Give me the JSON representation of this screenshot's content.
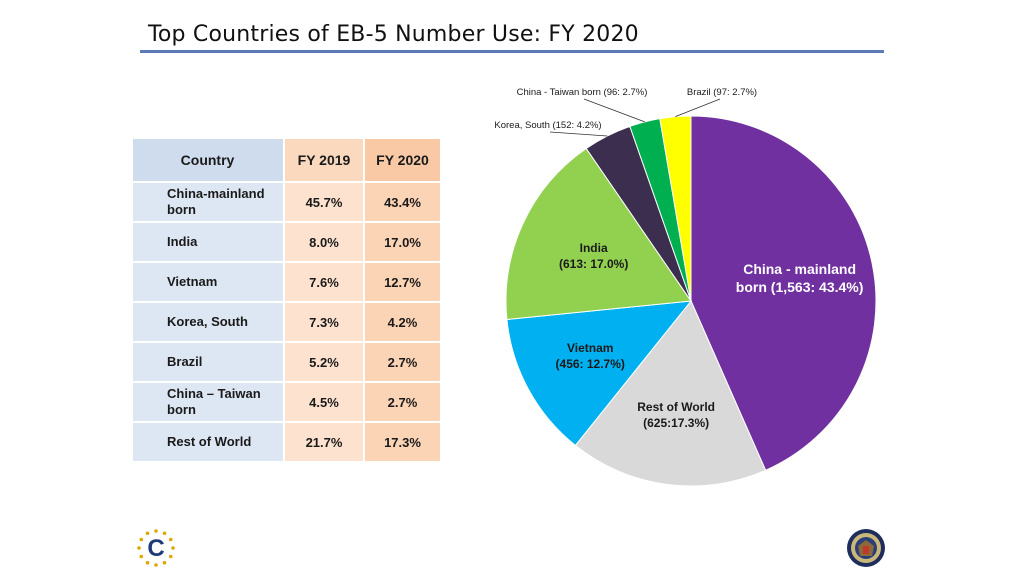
{
  "title": "Top Countries of EB-5 Number Use: FY 2020",
  "table": {
    "headers": [
      "Country",
      "FY 2019",
      "FY 2020"
    ],
    "rows": [
      [
        "China-mainland born",
        "45.7%",
        "43.4%"
      ],
      [
        "India",
        "8.0%",
        "17.0%"
      ],
      [
        "Vietnam",
        "7.6%",
        "12.7%"
      ],
      [
        "Korea, South",
        "7.3%",
        "4.2%"
      ],
      [
        "Brazil",
        "5.2%",
        "2.7%"
      ],
      [
        "China – Taiwan born",
        "4.5%",
        "2.7%"
      ],
      [
        "Rest of World",
        "21.7%",
        "17.3%"
      ]
    ]
  },
  "chart_data": [
    {
      "type": "table",
      "columns": [
        "Country",
        "FY 2019",
        "FY 2020"
      ],
      "rows": [
        [
          "China-mainland born",
          45.7,
          43.4
        ],
        [
          "India",
          8.0,
          17.0
        ],
        [
          "Vietnam",
          7.6,
          12.7
        ],
        [
          "Korea, South",
          7.3,
          4.2
        ],
        [
          "Brazil",
          5.2,
          2.7
        ],
        [
          "China – Taiwan born",
          4.5,
          2.7
        ],
        [
          "Rest of World",
          21.7,
          17.3
        ]
      ]
    },
    {
      "type": "pie",
      "slices": [
        {
          "label": "China - mainland born",
          "value": 1563,
          "percent": 43.4,
          "display": [
            "China - mainland",
            "born (1,563: 43.4%)"
          ],
          "color": "#7030a0",
          "label_inside": true
        },
        {
          "label": "Rest of World",
          "value": 625,
          "percent": 17.3,
          "display": [
            "Rest of World",
            "(625:17.3%)"
          ],
          "color": "#d9d9d9",
          "label_inside": true
        },
        {
          "label": "Vietnam",
          "value": 456,
          "percent": 12.7,
          "display": [
            "Vietnam",
            "(456: 12.7%)"
          ],
          "color": "#00b0f0",
          "label_inside": true
        },
        {
          "label": "India",
          "value": 613,
          "percent": 17.0,
          "display": [
            "India",
            "(613: 17.0%)"
          ],
          "color": "#92d050",
          "label_inside": true
        },
        {
          "label": "Korea, South",
          "value": 152,
          "percent": 4.2,
          "display": [
            "Korea, South (152: 4.2%)"
          ],
          "color": "#3c2e4e",
          "label_inside": false
        },
        {
          "label": "China - Taiwan born",
          "value": 96,
          "percent": 2.7,
          "display": [
            "China - Taiwan born (96: 2.7%)"
          ],
          "color": "#00b050",
          "label_inside": false
        },
        {
          "label": "Brazil",
          "value": 97,
          "percent": 2.7,
          "display": [
            "Brazil (97: 2.7%)"
          ],
          "color": "#ffff00",
          "label_inside": false
        }
      ]
    }
  ],
  "logos": {
    "left": "C",
    "right_icon": "seal-icon",
    "left_icon": "c-star-logo-icon"
  }
}
